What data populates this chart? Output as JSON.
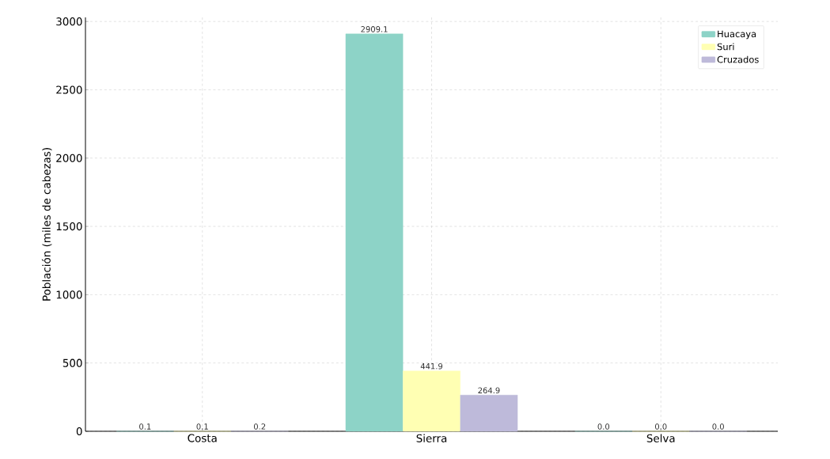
{
  "chart_data": {
    "type": "bar",
    "ylabel": "Población (miles de cabezas)",
    "categories": [
      "Costa",
      "Sierra",
      "Selva"
    ],
    "series": [
      {
        "name": "Huacaya",
        "color": "#8dd3c7",
        "values": [
          0.1,
          2909.1,
          0
        ],
        "value_labels": [
          "0.1",
          "2909.1",
          "0.0"
        ]
      },
      {
        "name": "Suri",
        "color": "#ffffb3",
        "values": [
          0.1,
          441.9,
          0
        ],
        "value_labels": [
          "0.1",
          "441.9",
          "0.0"
        ]
      },
      {
        "name": "Cruzados",
        "color": "#bebada",
        "values": [
          0.2,
          264.9,
          0
        ],
        "value_labels": [
          "0.2",
          "264.9",
          "0.0"
        ]
      }
    ],
    "ylim": [
      0,
      3030
    ],
    "yticks": [
      0,
      500,
      1000,
      1500,
      2000,
      2500,
      3000
    ],
    "grid": true,
    "legend": "top right"
  }
}
